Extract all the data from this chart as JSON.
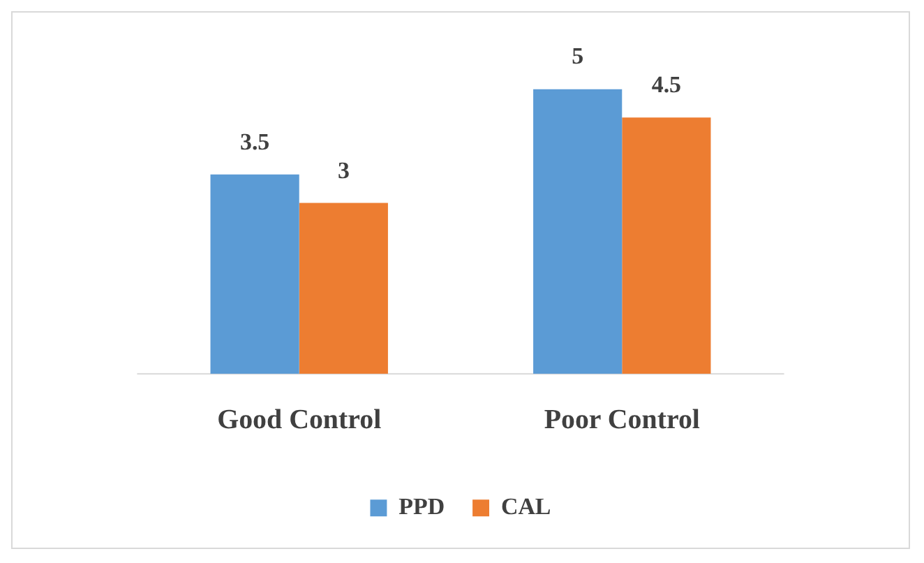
{
  "chart_data": {
    "type": "bar",
    "categories": [
      "Good Control",
      "Poor Control"
    ],
    "series": [
      {
        "name": "PPD",
        "color": "#5b9bd5",
        "values": [
          3.5,
          5
        ]
      },
      {
        "name": "CAL",
        "color": "#ed7d31",
        "values": [
          3,
          4.5
        ]
      }
    ],
    "data_labels": true,
    "legend": "bottom",
    "grid": false,
    "tick_labels": "x"
  }
}
